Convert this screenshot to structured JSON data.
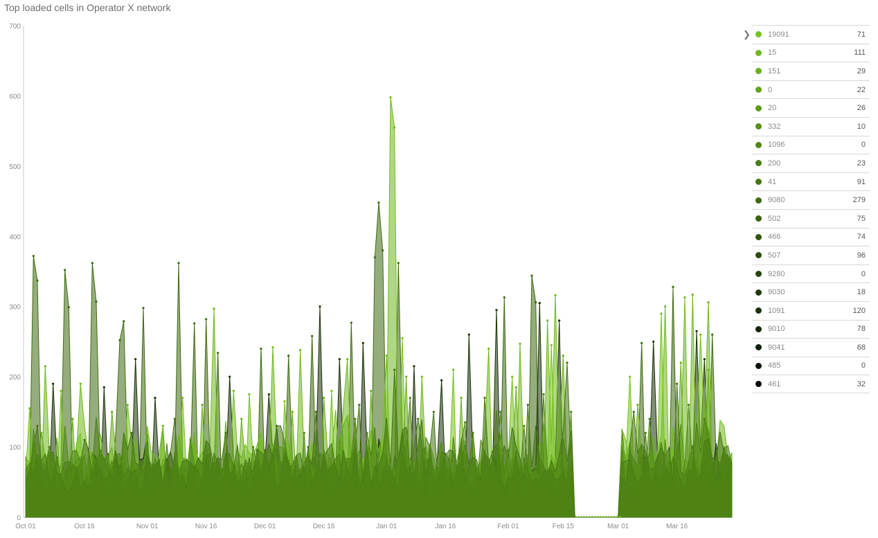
{
  "title": "Top loaded cells in Operator X network",
  "legend": {
    "arrow_icon": "chevron-right-icon",
    "items": [
      {
        "name": "19091",
        "value": "71",
        "color": "#76c11f"
      },
      {
        "name": "15",
        "value": "111",
        "color": "#70b81d"
      },
      {
        "name": "151",
        "value": "29",
        "color": "#69ae1c"
      },
      {
        "name": "0",
        "value": "22",
        "color": "#63a51a"
      },
      {
        "name": "20",
        "value": "26",
        "color": "#5d9c19"
      },
      {
        "name": "332",
        "value": "10",
        "color": "#578f17"
      },
      {
        "name": "1096",
        "value": "0",
        "color": "#508615"
      },
      {
        "name": "200",
        "value": "23",
        "color": "#4a7d14"
      },
      {
        "name": "41",
        "value": "91",
        "color": "#447312"
      },
      {
        "name": "9080",
        "value": "279",
        "color": "#3e6a10"
      },
      {
        "name": "502",
        "value": "75",
        "color": "#38600f"
      },
      {
        "name": "466",
        "value": "74",
        "color": "#31570d"
      },
      {
        "name": "507",
        "value": "96",
        "color": "#2b4d0b"
      },
      {
        "name": "9280",
        "value": "0",
        "color": "#25440a"
      },
      {
        "name": "9030",
        "value": "18",
        "color": "#1f3a08"
      },
      {
        "name": "1091",
        "value": "120",
        "color": "#193107"
      },
      {
        "name": "9010",
        "value": "78",
        "color": "#132705"
      },
      {
        "name": "9041",
        "value": "68",
        "color": "#0d1e04"
      },
      {
        "name": "485",
        "value": "0",
        "color": "#071402"
      },
      {
        "name": "461",
        "value": "32",
        "color": "#020701"
      }
    ]
  },
  "chart_data": {
    "type": "area",
    "title": "Top loaded cells in Operator X network",
    "xlabel": "",
    "ylabel": "",
    "ylim": [
      0,
      700
    ],
    "yticks": [
      0,
      100,
      200,
      300,
      400,
      500,
      600,
      700
    ],
    "x_start": "Oct 01",
    "x_end": "Mar 30",
    "xticks": [
      {
        "label": "Oct 01",
        "day": 0
      },
      {
        "label": "Oct 16",
        "day": 15
      },
      {
        "label": "Nov 01",
        "day": 31
      },
      {
        "label": "Nov 16",
        "day": 46
      },
      {
        "label": "Dec 01",
        "day": 61
      },
      {
        "label": "Dec 16",
        "day": 76
      },
      {
        "label": "Jan 01",
        "day": 92
      },
      {
        "label": "Jan 16",
        "day": 107
      },
      {
        "label": "Feb 01",
        "day": 123
      },
      {
        "label": "Feb 15",
        "day": 137
      },
      {
        "label": "Mar 01",
        "day": 151
      },
      {
        "label": "Mar 16",
        "day": 166
      }
    ],
    "gap": {
      "from_day": 140,
      "to_day": 152
    },
    "grid": false,
    "legend_position": "right",
    "series": [
      {
        "name": "9080",
        "color": "#3e6a10",
        "peaks": [
          [
            2,
            372
          ],
          [
            3,
            337
          ],
          [
            10,
            352
          ],
          [
            11,
            299
          ],
          [
            17,
            362
          ],
          [
            18,
            307
          ],
          [
            24,
            252
          ],
          [
            25,
            279
          ],
          [
            30,
            298
          ],
          [
            39,
            362
          ],
          [
            43,
            276
          ],
          [
            46,
            282
          ],
          [
            49,
            234
          ],
          [
            60,
            240
          ],
          [
            67,
            230
          ],
          [
            73,
            258
          ],
          [
            83,
            277
          ],
          [
            89,
            370
          ],
          [
            90,
            448
          ],
          [
            91,
            380
          ],
          [
            95,
            362
          ],
          [
            122,
            313
          ],
          [
            129,
            344
          ],
          [
            130,
            306
          ],
          [
            157,
            248
          ],
          [
            165,
            328
          ],
          [
            175,
            260
          ]
        ]
      },
      {
        "name": "1091",
        "color": "#193107",
        "peaks": [
          [
            7,
            190
          ],
          [
            20,
            185
          ],
          [
            28,
            225
          ],
          [
            33,
            170
          ],
          [
            52,
            200
          ],
          [
            62,
            175
          ],
          [
            75,
            300
          ],
          [
            80,
            225
          ],
          [
            86,
            248
          ],
          [
            99,
            215
          ],
          [
            106,
            195
          ],
          [
            113,
            260
          ],
          [
            120,
            295
          ],
          [
            131,
            305
          ],
          [
            136,
            280
          ],
          [
            160,
            250
          ],
          [
            171,
            265
          ],
          [
            173,
            225
          ]
        ]
      },
      {
        "name": "15",
        "color": "#70b81d",
        "peaks": [
          [
            5,
            215
          ],
          [
            14,
            190
          ],
          [
            48,
            297
          ],
          [
            53,
            180
          ],
          [
            63,
            242
          ],
          [
            70,
            238
          ],
          [
            82,
            225
          ],
          [
            93,
            598
          ],
          [
            94,
            555
          ],
          [
            101,
            200
          ],
          [
            118,
            240
          ],
          [
            126,
            247
          ],
          [
            133,
            280
          ],
          [
            135,
            316
          ],
          [
            163,
            300
          ],
          [
            168,
            313
          ],
          [
            170,
            317
          ],
          [
            174,
            306
          ]
        ]
      },
      {
        "name": "19091",
        "color": "#76c11f",
        "peaks": [
          [
            1,
            155
          ],
          [
            9,
            180
          ],
          [
            26,
            160
          ],
          [
            40,
            170
          ],
          [
            57,
            175
          ],
          [
            66,
            165
          ],
          [
            78,
            180
          ],
          [
            92,
            230
          ],
          [
            96,
            255
          ],
          [
            109,
            210
          ],
          [
            124,
            200
          ],
          [
            134,
            245
          ],
          [
            154,
            200
          ],
          [
            162,
            290
          ],
          [
            172,
            260
          ]
        ]
      },
      {
        "name": "151",
        "color": "#69ae1c",
        "peaks": [
          [
            4,
            120
          ],
          [
            12,
            140
          ],
          [
            22,
            150
          ],
          [
            35,
            130
          ],
          [
            45,
            160
          ],
          [
            55,
            140
          ],
          [
            68,
            150
          ],
          [
            76,
            170
          ],
          [
            88,
            180
          ],
          [
            97,
            200
          ],
          [
            111,
            170
          ],
          [
            125,
            185
          ],
          [
            137,
            230
          ],
          [
            156,
            160
          ],
          [
            167,
            220
          ],
          [
            174,
            210
          ]
        ]
      },
      {
        "name": "41",
        "color": "#447312",
        "peaks": [
          [
            3,
            130
          ],
          [
            15,
            110
          ],
          [
            27,
            120
          ],
          [
            38,
            140
          ],
          [
            51,
            120
          ],
          [
            64,
            130
          ],
          [
            74,
            150
          ],
          [
            85,
            160
          ],
          [
            94,
            210
          ],
          [
            104,
            150
          ],
          [
            117,
            170
          ],
          [
            128,
            160
          ],
          [
            138,
            220
          ],
          [
            155,
            150
          ],
          [
            166,
            190
          ]
        ]
      },
      {
        "name": "1096",
        "color": "#508615",
        "peaks": [
          [
            6,
            100
          ],
          [
            19,
            95
          ],
          [
            31,
            105
          ],
          [
            42,
            110
          ],
          [
            58,
            100
          ],
          [
            71,
            120
          ],
          [
            84,
            140
          ],
          [
            98,
            170
          ],
          [
            112,
            135
          ],
          [
            121,
            150
          ],
          [
            132,
            175
          ],
          [
            159,
            140
          ],
          [
            169,
            160
          ]
        ]
      },
      {
        "name": "200",
        "color": "#4a7d14",
        "peaks": [
          [
            8,
            85
          ],
          [
            21,
            90
          ],
          [
            34,
            80
          ],
          [
            47,
            90
          ],
          [
            59,
            95
          ],
          [
            72,
            100
          ],
          [
            87,
            120
          ],
          [
            100,
            140
          ],
          [
            114,
            120
          ],
          [
            127,
            130
          ],
          [
            139,
            150
          ],
          [
            158,
            120
          ],
          [
            173,
            140
          ]
        ]
      }
    ]
  }
}
